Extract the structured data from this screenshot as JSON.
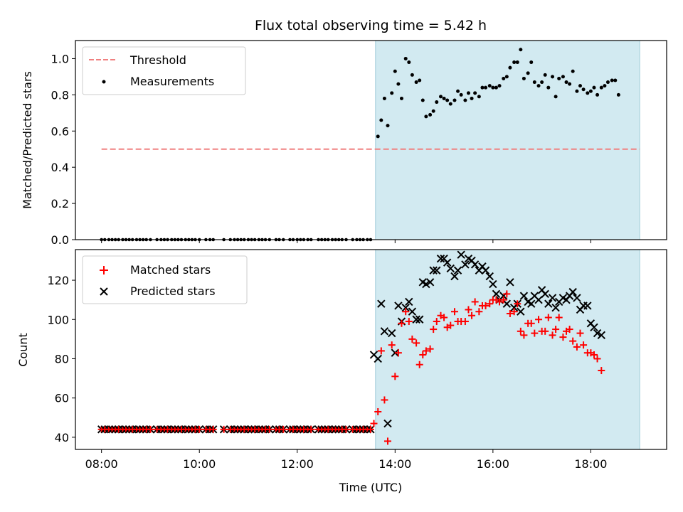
{
  "title": "Flux total observing time = 5.42 h",
  "colors": {
    "observing_span": "#add8e6",
    "threshold": "#f08080",
    "measurement": "#000000",
    "matched": "#ff0000",
    "predicted": "#000000"
  },
  "chart_data": [
    {
      "type": "scatter",
      "ylabel": "Matched/Predicted stars",
      "xlim": [
        "07:28",
        "19:33"
      ],
      "ylim": [
        0,
        1.1
      ],
      "yticks": [
        "0.0",
        "0.2",
        "0.4",
        "0.6",
        "0.8",
        "1.0"
      ],
      "shaded_span": [
        "13:36",
        "19:00"
      ],
      "legend": {
        "position": "top-left",
        "entries": [
          "Threshold",
          "Measurements"
        ]
      },
      "threshold": {
        "name": "Threshold",
        "y": 0.5,
        "x": [
          "08:00",
          "19:00"
        ]
      },
      "measurements": {
        "name": "Measurements",
        "zero_x": [
          "08:00",
          "08:04",
          "08:09",
          "08:13",
          "08:17",
          "08:21",
          "08:26",
          "08:30",
          "08:34",
          "08:38",
          "08:43",
          "08:47",
          "08:51",
          "08:55",
          "09:00",
          "09:08",
          "09:13",
          "09:17",
          "09:21",
          "09:26",
          "09:30",
          "09:34",
          "09:38",
          "09:43",
          "09:47",
          "09:51",
          "09:55",
          "10:00",
          "10:08",
          "10:13",
          "10:17",
          "10:30",
          "10:38",
          "10:43",
          "10:47",
          "10:51",
          "10:55",
          "11:00",
          "11:04",
          "11:08",
          "11:13",
          "11:17",
          "11:21",
          "11:26",
          "11:34",
          "11:38",
          "11:43",
          "11:51",
          "11:55",
          "12:00",
          "12:04",
          "12:08",
          "12:13",
          "12:17",
          "12:26",
          "12:30",
          "12:34",
          "12:38",
          "12:43",
          "12:47",
          "12:51",
          "12:55",
          "13:00",
          "13:08",
          "13:13",
          "13:17",
          "13:21",
          "13:26",
          "13:30"
        ],
        "points": [
          [
            "13:39",
            0.57
          ],
          [
            "13:43",
            0.66
          ],
          [
            "13:47",
            0.78
          ],
          [
            "13:51",
            0.63
          ],
          [
            "13:56",
            0.81
          ],
          [
            "14:00",
            0.93
          ],
          [
            "14:04",
            0.86
          ],
          [
            "14:08",
            0.78
          ],
          [
            "14:13",
            1.0
          ],
          [
            "14:17",
            0.98
          ],
          [
            "14:21",
            0.91
          ],
          [
            "14:26",
            0.87
          ],
          [
            "14:30",
            0.88
          ],
          [
            "14:34",
            0.77
          ],
          [
            "14:38",
            0.68
          ],
          [
            "14:43",
            0.69
          ],
          [
            "14:47",
            0.71
          ],
          [
            "14:51",
            0.76
          ],
          [
            "14:56",
            0.79
          ],
          [
            "15:00",
            0.78
          ],
          [
            "15:04",
            0.77
          ],
          [
            "15:08",
            0.75
          ],
          [
            "15:13",
            0.77
          ],
          [
            "15:17",
            0.82
          ],
          [
            "15:21",
            0.8
          ],
          [
            "15:26",
            0.77
          ],
          [
            "15:30",
            0.81
          ],
          [
            "15:34",
            0.78
          ],
          [
            "15:38",
            0.81
          ],
          [
            "15:43",
            0.79
          ],
          [
            "15:47",
            0.84
          ],
          [
            "15:51",
            0.84
          ],
          [
            "15:56",
            0.85
          ],
          [
            "16:00",
            0.84
          ],
          [
            "16:04",
            0.84
          ],
          [
            "16:08",
            0.85
          ],
          [
            "16:13",
            0.89
          ],
          [
            "16:17",
            0.9
          ],
          [
            "16:21",
            0.95
          ],
          [
            "16:26",
            0.98
          ],
          [
            "16:30",
            0.98
          ],
          [
            "16:34",
            1.05
          ],
          [
            "16:38",
            0.89
          ],
          [
            "16:43",
            0.92
          ],
          [
            "16:47",
            0.98
          ],
          [
            "16:51",
            0.87
          ],
          [
            "16:56",
            0.85
          ],
          [
            "17:00",
            0.87
          ],
          [
            "17:04",
            0.91
          ],
          [
            "17:08",
            0.84
          ],
          [
            "17:13",
            0.9
          ],
          [
            "17:17",
            0.79
          ],
          [
            "17:21",
            0.89
          ],
          [
            "17:26",
            0.9
          ],
          [
            "17:30",
            0.87
          ],
          [
            "17:34",
            0.86
          ],
          [
            "17:38",
            0.93
          ],
          [
            "17:43",
            0.82
          ],
          [
            "17:47",
            0.85
          ],
          [
            "17:51",
            0.83
          ],
          [
            "17:56",
            0.81
          ],
          [
            "18:00",
            0.82
          ],
          [
            "18:04",
            0.84
          ],
          [
            "18:08",
            0.8
          ],
          [
            "18:13",
            0.84
          ],
          [
            "18:17",
            0.85
          ],
          [
            "18:21",
            0.87
          ],
          [
            "18:26",
            0.88
          ],
          [
            "18:30",
            0.88
          ],
          [
            "18:34",
            0.8
          ]
        ]
      }
    },
    {
      "type": "scatter",
      "xlabel": "Time (UTC)",
      "ylabel": "Count",
      "xlim": [
        "07:28",
        "19:33"
      ],
      "ylim": [
        33.8,
        135.6
      ],
      "yticks": [
        "40",
        "60",
        "80",
        "100",
        "120"
      ],
      "xticks": [
        "08:00",
        "10:00",
        "12:00",
        "14:00",
        "16:00",
        "18:00"
      ],
      "shaded_span": [
        "13:36",
        "19:00"
      ],
      "legend": {
        "position": "top-left",
        "entries": [
          "Matched stars",
          "Predicted stars"
        ]
      },
      "baseline": {
        "value": 44,
        "x": [
          "08:00",
          "08:04",
          "08:09",
          "08:13",
          "08:17",
          "08:21",
          "08:26",
          "08:30",
          "08:34",
          "08:38",
          "08:43",
          "08:47",
          "08:51",
          "08:55",
          "09:00",
          "09:08",
          "09:13",
          "09:17",
          "09:21",
          "09:26",
          "09:30",
          "09:34",
          "09:38",
          "09:43",
          "09:47",
          "09:51",
          "09:55",
          "10:00",
          "10:08",
          "10:13",
          "10:17",
          "10:30",
          "10:38",
          "10:43",
          "10:47",
          "10:51",
          "10:55",
          "11:00",
          "11:04",
          "11:08",
          "11:13",
          "11:17",
          "11:21",
          "11:26",
          "11:34",
          "11:38",
          "11:43",
          "11:51",
          "11:55",
          "12:00",
          "12:04",
          "12:08",
          "12:13",
          "12:17",
          "12:26",
          "12:30",
          "12:34",
          "12:38",
          "12:43",
          "12:47",
          "12:51",
          "12:55",
          "13:00",
          "13:08",
          "13:13",
          "13:17",
          "13:21",
          "13:26",
          "13:30"
        ]
      },
      "series": [
        {
          "name": "Matched stars",
          "marker": "plus",
          "points": [
            [
              "13:34",
              47
            ],
            [
              "13:39",
              53
            ],
            [
              "13:43",
              84
            ],
            [
              "13:47",
              59
            ],
            [
              "13:51",
              38
            ],
            [
              "13:56",
              87
            ],
            [
              "14:00",
              71
            ],
            [
              "14:04",
              83
            ],
            [
              "14:08",
              98
            ],
            [
              "14:13",
              104
            ],
            [
              "14:17",
              99
            ],
            [
              "14:21",
              90
            ],
            [
              "14:26",
              88
            ],
            [
              "14:30",
              77
            ],
            [
              "14:34",
              82
            ],
            [
              "14:38",
              84
            ],
            [
              "14:43",
              85
            ],
            [
              "14:47",
              95
            ],
            [
              "14:51",
              99
            ],
            [
              "14:56",
              102
            ],
            [
              "15:00",
              101
            ],
            [
              "15:04",
              96
            ],
            [
              "15:08",
              97
            ],
            [
              "15:13",
              104
            ],
            [
              "15:17",
              99
            ],
            [
              "15:21",
              99
            ],
            [
              "15:26",
              99
            ],
            [
              "15:30",
              105
            ],
            [
              "15:34",
              102
            ],
            [
              "15:38",
              109
            ],
            [
              "15:43",
              104
            ],
            [
              "15:47",
              107
            ],
            [
              "15:51",
              107
            ],
            [
              "15:56",
              108
            ],
            [
              "16:00",
              110
            ],
            [
              "16:04",
              110
            ],
            [
              "16:08",
              109
            ],
            [
              "16:13",
              110
            ],
            [
              "16:17",
              113
            ],
            [
              "16:21",
              103
            ],
            [
              "16:26",
              104
            ],
            [
              "16:30",
              108
            ],
            [
              "16:34",
              94
            ],
            [
              "16:38",
              92
            ],
            [
              "16:43",
              98
            ],
            [
              "16:47",
              98
            ],
            [
              "16:51",
              93
            ],
            [
              "16:56",
              100
            ],
            [
              "17:00",
              94
            ],
            [
              "17:04",
              94
            ],
            [
              "17:08",
              101
            ],
            [
              "17:13",
              92
            ],
            [
              "17:17",
              95
            ],
            [
              "17:21",
              101
            ],
            [
              "17:26",
              91
            ],
            [
              "17:30",
              94
            ],
            [
              "17:34",
              95
            ],
            [
              "17:38",
              89
            ],
            [
              "17:43",
              86
            ],
            [
              "17:47",
              93
            ],
            [
              "17:51",
              87
            ],
            [
              "17:56",
              83
            ],
            [
              "18:00",
              83
            ],
            [
              "18:04",
              82
            ],
            [
              "18:08",
              80
            ],
            [
              "18:13",
              74
            ]
          ]
        },
        {
          "name": "Predicted stars",
          "marker": "x",
          "points": [
            [
              "13:34",
              82
            ],
            [
              "13:39",
              80
            ],
            [
              "13:43",
              108
            ],
            [
              "13:47",
              94
            ],
            [
              "13:51",
              47
            ],
            [
              "13:56",
              93
            ],
            [
              "14:00",
              83
            ],
            [
              "14:04",
              107
            ],
            [
              "14:08",
              99
            ],
            [
              "14:13",
              106
            ],
            [
              "14:17",
              109
            ],
            [
              "14:21",
              104
            ],
            [
              "14:26",
              100
            ],
            [
              "14:30",
              100
            ],
            [
              "14:34",
              119
            ],
            [
              "14:38",
              118
            ],
            [
              "14:43",
              119
            ],
            [
              "14:47",
              125
            ],
            [
              "14:51",
              125
            ],
            [
              "14:56",
              131
            ],
            [
              "15:00",
              131
            ],
            [
              "15:04",
              129
            ],
            [
              "15:08",
              126
            ],
            [
              "15:13",
              122
            ],
            [
              "15:17",
              125
            ],
            [
              "15:21",
              133
            ],
            [
              "15:26",
              128
            ],
            [
              "15:30",
              131
            ],
            [
              "15:34",
              130
            ],
            [
              "15:38",
              128
            ],
            [
              "15:43",
              125
            ],
            [
              "15:47",
              127
            ],
            [
              "15:51",
              125
            ],
            [
              "15:56",
              122
            ],
            [
              "16:00",
              118
            ],
            [
              "16:04",
              113
            ],
            [
              "16:08",
              110
            ],
            [
              "16:13",
              112
            ],
            [
              "16:17",
              108
            ],
            [
              "16:21",
              119
            ],
            [
              "16:26",
              106
            ],
            [
              "16:30",
              108
            ],
            [
              "16:34",
              104
            ],
            [
              "16:38",
              112
            ],
            [
              "16:43",
              109
            ],
            [
              "16:47",
              108
            ],
            [
              "16:51",
              112
            ],
            [
              "16:56",
              110
            ],
            [
              "17:00",
              115
            ],
            [
              "17:04",
              113
            ],
            [
              "17:08",
              108
            ],
            [
              "17:13",
              111
            ],
            [
              "17:17",
              106
            ],
            [
              "17:21",
              109
            ],
            [
              "17:26",
              111
            ],
            [
              "17:30",
              110
            ],
            [
              "17:34",
              112
            ],
            [
              "17:38",
              114
            ],
            [
              "17:43",
              111
            ],
            [
              "17:47",
              105
            ],
            [
              "17:51",
              107
            ],
            [
              "17:56",
              107
            ],
            [
              "18:00",
              98
            ],
            [
              "18:04",
              96
            ],
            [
              "18:08",
              93
            ],
            [
              "18:13",
              92
            ]
          ]
        }
      ]
    }
  ]
}
